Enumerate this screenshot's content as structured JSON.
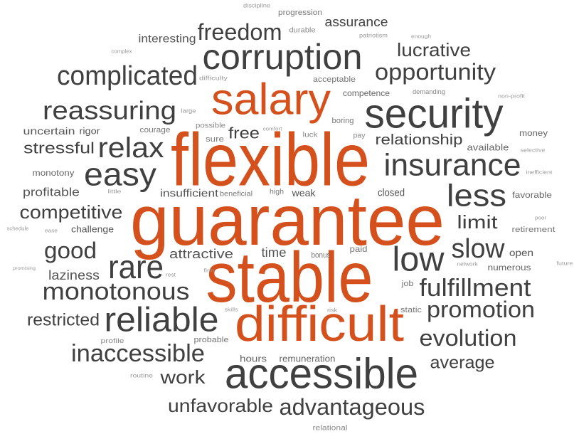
{
  "words": [
    {
      "text": "flexible",
      "color": "#d4501c"
    },
    {
      "text": "guarantee",
      "color": "#d4501c"
    },
    {
      "text": "stable",
      "color": "#d4501c"
    },
    {
      "text": "salary",
      "color": "#d4501c"
    },
    {
      "text": "difficult",
      "color": "#d4501c"
    },
    {
      "text": "corruption",
      "color": "#404040"
    },
    {
      "text": "security",
      "color": "#404040"
    },
    {
      "text": "freedom",
      "color": "#404040"
    },
    {
      "text": "complicated",
      "color": "#404040"
    },
    {
      "text": "opportunity",
      "color": "#404040"
    },
    {
      "text": "lucrative",
      "color": "#404040"
    },
    {
      "text": "assurance",
      "color": "#404040"
    },
    {
      "text": "interesting",
      "color": "#555555"
    },
    {
      "text": "reassuring",
      "color": "#404040"
    },
    {
      "text": "relax",
      "color": "#404040"
    },
    {
      "text": "easy",
      "color": "#404040"
    },
    {
      "text": "stressful",
      "color": "#404040"
    },
    {
      "text": "uncertain",
      "color": "#555555"
    },
    {
      "text": "rigor",
      "color": "#555555"
    },
    {
      "text": "free",
      "color": "#404040"
    },
    {
      "text": "insurance",
      "color": "#404040"
    },
    {
      "text": "relationship",
      "color": "#404040"
    },
    {
      "text": "less",
      "color": "#404040"
    },
    {
      "text": "limit",
      "color": "#404040"
    },
    {
      "text": "slow",
      "color": "#404040"
    },
    {
      "text": "low",
      "color": "#404040"
    },
    {
      "text": "fulfillment",
      "color": "#404040"
    },
    {
      "text": "promotion",
      "color": "#404040"
    },
    {
      "text": "evolution",
      "color": "#404040"
    },
    {
      "text": "average",
      "color": "#404040"
    },
    {
      "text": "accessible",
      "color": "#404040"
    },
    {
      "text": "advantageous",
      "color": "#404040"
    },
    {
      "text": "unfavorable",
      "color": "#404040"
    },
    {
      "text": "work",
      "color": "#404040"
    },
    {
      "text": "inaccessible",
      "color": "#404040"
    },
    {
      "text": "reliable",
      "color": "#404040"
    },
    {
      "text": "restricted",
      "color": "#404040"
    },
    {
      "text": "monotonous",
      "color": "#404040"
    },
    {
      "text": "rare",
      "color": "#404040"
    },
    {
      "text": "laziness",
      "color": "#555555"
    },
    {
      "text": "good",
      "color": "#404040"
    },
    {
      "text": "competitive",
      "color": "#404040"
    },
    {
      "text": "profitable",
      "color": "#555555"
    },
    {
      "text": "monotony",
      "color": "#666666"
    },
    {
      "text": "challenge",
      "color": "#555555"
    },
    {
      "text": "insufficient",
      "color": "#555555"
    },
    {
      "text": "beneficial",
      "color": "#777777"
    },
    {
      "text": "high",
      "color": "#777777"
    },
    {
      "text": "weak",
      "color": "#555555"
    },
    {
      "text": "closed",
      "color": "#555555"
    },
    {
      "text": "attractive",
      "color": "#555555"
    },
    {
      "text": "time",
      "color": "#555555"
    },
    {
      "text": "bonus",
      "color": "#777777"
    },
    {
      "text": "paid",
      "color": "#777777"
    },
    {
      "text": "job",
      "color": "#777777"
    },
    {
      "text": "static",
      "color": "#777777"
    },
    {
      "text": "hours",
      "color": "#666666"
    },
    {
      "text": "remuneration",
      "color": "#666666"
    },
    {
      "text": "probable",
      "color": "#777777"
    },
    {
      "text": "open",
      "color": "#555555"
    },
    {
      "text": "numerous",
      "color": "#666666"
    },
    {
      "text": "retirement",
      "color": "#777777"
    },
    {
      "text": "favorable",
      "color": "#666666"
    },
    {
      "text": "money",
      "color": "#666666"
    },
    {
      "text": "available",
      "color": "#666666"
    },
    {
      "text": "competence",
      "color": "#666666"
    },
    {
      "text": "demanding",
      "color": "#888888"
    },
    {
      "text": "acceptable",
      "color": "#777777"
    },
    {
      "text": "boring",
      "color": "#777777"
    },
    {
      "text": "pay",
      "color": "#888888"
    },
    {
      "text": "luck",
      "color": "#888888"
    },
    {
      "text": "sure",
      "color": "#777777"
    },
    {
      "text": "possible",
      "color": "#888888"
    },
    {
      "text": "courage",
      "color": "#777777"
    },
    {
      "text": "progression",
      "color": "#777777"
    },
    {
      "text": "durable",
      "color": "#888888"
    },
    {
      "text": "patriotism",
      "color": "#999999"
    },
    {
      "text": "enough",
      "color": "#999999"
    },
    {
      "text": "discipline",
      "color": "#999999"
    },
    {
      "text": "complex",
      "color": "#999999"
    },
    {
      "text": "difficulty",
      "color": "#999999"
    },
    {
      "text": "large",
      "color": "#999999"
    },
    {
      "text": "comfort",
      "color": "#999999"
    },
    {
      "text": "non-profit",
      "color": "#999999"
    },
    {
      "text": "selective",
      "color": "#999999"
    },
    {
      "text": "inefficient",
      "color": "#999999"
    },
    {
      "text": "little",
      "color": "#999999"
    },
    {
      "text": "poor",
      "color": "#999999"
    },
    {
      "text": "schedule",
      "color": "#999999"
    },
    {
      "text": "ease",
      "color": "#999999"
    },
    {
      "text": "promising",
      "color": "#999999"
    },
    {
      "text": "rest",
      "color": "#999999"
    },
    {
      "text": "firm",
      "color": "#999999"
    },
    {
      "text": "network",
      "color": "#999999"
    },
    {
      "text": "future",
      "color": "#999999"
    },
    {
      "text": "skills",
      "color": "#999999"
    },
    {
      "text": "risk",
      "color": "#999999"
    },
    {
      "text": "profile",
      "color": "#888888"
    },
    {
      "text": "routine",
      "color": "#999999"
    },
    {
      "text": "relational",
      "color": "#888888"
    }
  ]
}
